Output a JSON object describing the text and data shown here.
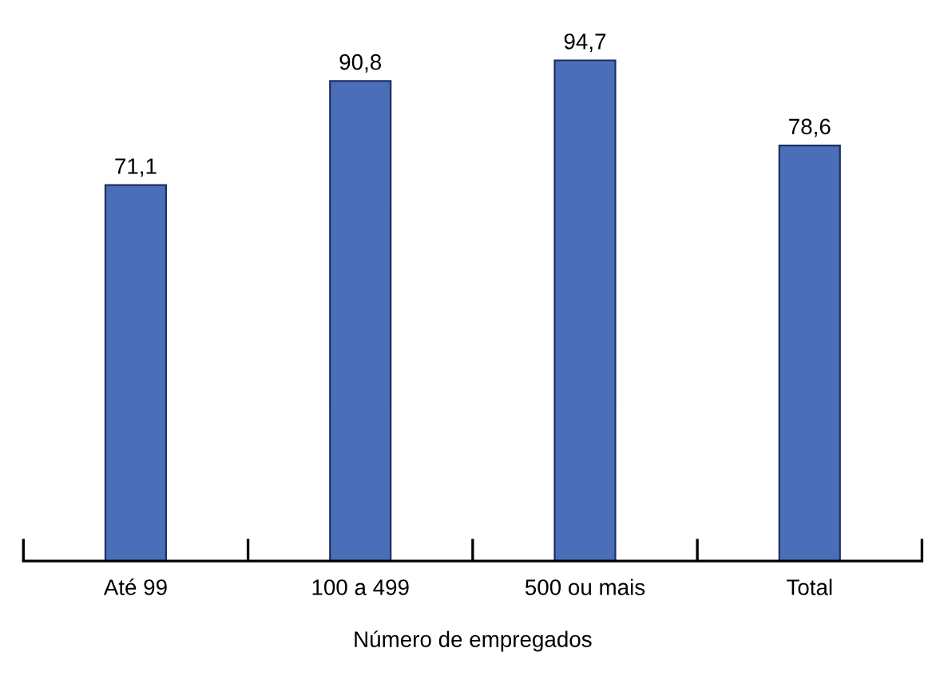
{
  "chart_data": {
    "type": "bar",
    "xlabel": "Número de empregados",
    "categories": [
      "Até 99",
      "100 a 499",
      "500 ou mais",
      "Total"
    ],
    "values": [
      71.1,
      90.8,
      94.7,
      78.6
    ],
    "value_labels": [
      "71,1",
      "90,8",
      "94,7",
      "78,6"
    ],
    "color": "#4a6fb8",
    "tick_labels": "x"
  }
}
